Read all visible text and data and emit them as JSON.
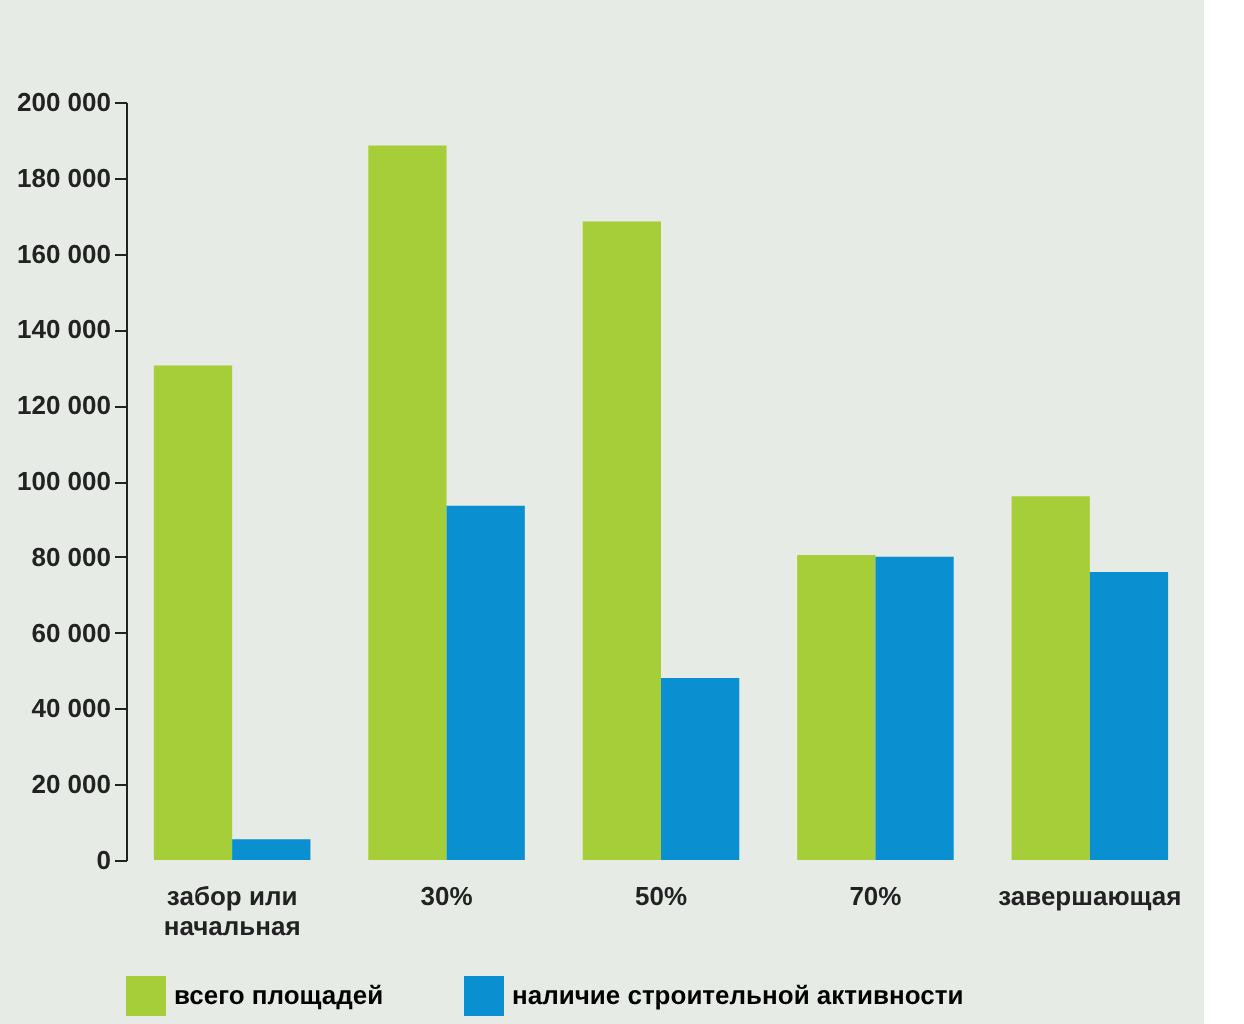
{
  "chart_data": {
    "type": "bar",
    "categories": [
      "забор или начальная",
      "30%",
      "50%",
      "70%",
      "завершающая"
    ],
    "series": [
      {
        "name": "всего площадей",
        "color": "#a6ce39",
        "values": [
          130500,
          188500,
          168500,
          80500,
          96000
        ]
      },
      {
        "name": "наличие строительной активности",
        "color": "#0a8fd1",
        "values": [
          5500,
          93500,
          48000,
          80000,
          76000
        ]
      }
    ],
    "ylim": [
      0,
      200000
    ],
    "yticks": [
      0,
      {
        "value": 20000,
        "label": "20 000"
      },
      {
        "value": 40000,
        "label": "40 000"
      },
      {
        "value": 60000,
        "label": "60 000"
      },
      {
        "value": 80000,
        "label": "80 000"
      },
      {
        "value": 100000,
        "label": "100 000"
      },
      {
        "value": 120000,
        "label": "120 000"
      },
      {
        "value": 140000,
        "label": "140 000"
      },
      {
        "value": 160000,
        "label": "160 000"
      },
      {
        "value": 180000,
        "label": "180 000"
      },
      {
        "value": 200000,
        "label": "200 000"
      }
    ],
    "grid": false,
    "legend": "bottom"
  }
}
